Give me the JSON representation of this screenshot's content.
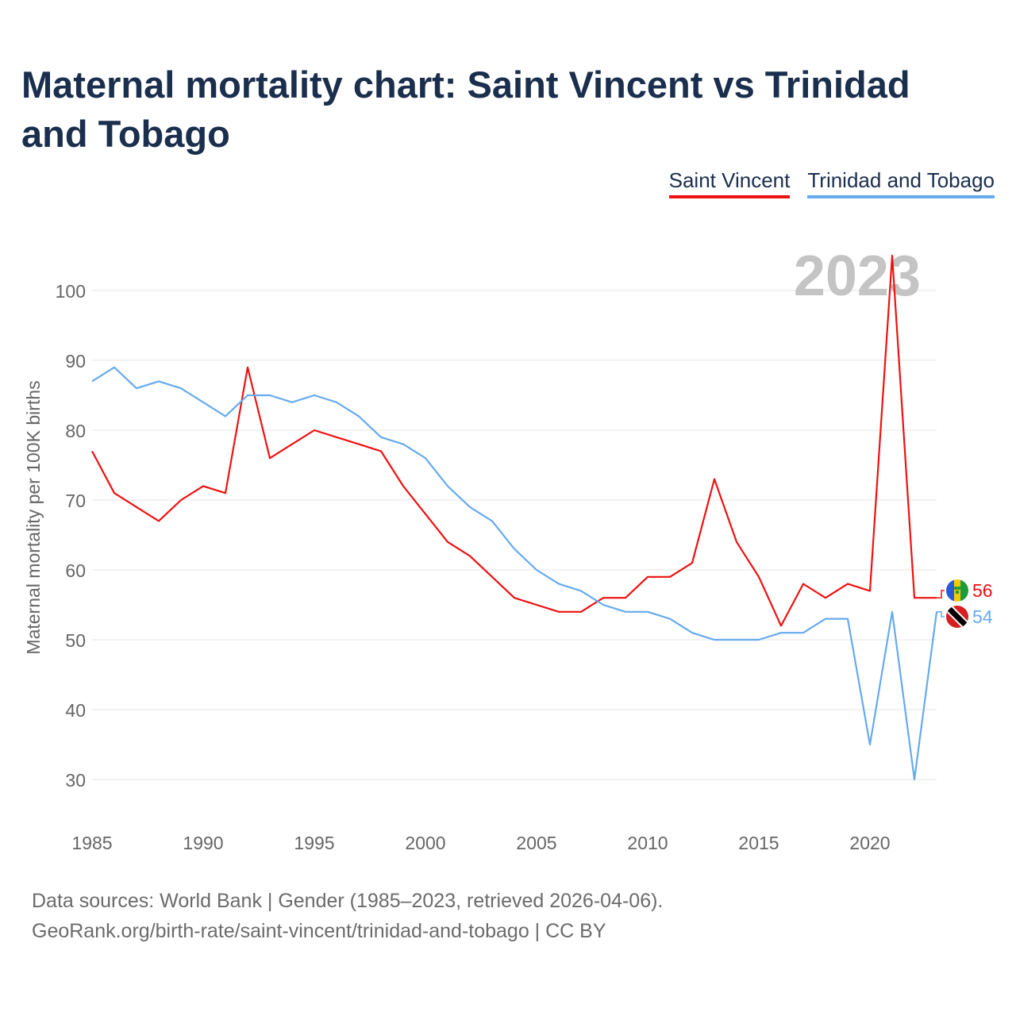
{
  "title": "Maternal mortality chart: Saint Vincent vs Trinidad and Tobago",
  "legend": [
    "Saint Vincent",
    "Trinidad and Tobago"
  ],
  "year_label": "2023",
  "end_labels": {
    "saint_vincent": "56",
    "trinidad": "54"
  },
  "source": {
    "line1": "Data sources: World Bank | Gender (1985–2023, retrieved 2026-04-06).",
    "line2": "GeoRank.org/birth-rate/saint-vincent/trinidad-and-tobago | CC BY"
  },
  "colors": {
    "saint_vincent": "#ee1111",
    "trinidad": "#66aaee",
    "title": "#1a2e4d",
    "axis_text": "#666666",
    "grid": "#e6e6e6",
    "year": "#c4c4c4"
  },
  "chart_data": {
    "type": "line",
    "title": "Maternal mortality chart: Saint Vincent vs Trinidad and Tobago",
    "xlabel": "",
    "ylabel": "Maternal mortality per 100K births",
    "xlim": [
      1985,
      2023
    ],
    "ylim": [
      25,
      110
    ],
    "x_ticks": [
      1985,
      1990,
      1995,
      2000,
      2005,
      2010,
      2015,
      2020
    ],
    "y_ticks": [
      30,
      40,
      50,
      60,
      70,
      80,
      90,
      100
    ],
    "x": [
      1985,
      1986,
      1987,
      1988,
      1989,
      1990,
      1991,
      1992,
      1993,
      1994,
      1995,
      1996,
      1997,
      1998,
      1999,
      2000,
      2001,
      2002,
      2003,
      2004,
      2005,
      2006,
      2007,
      2008,
      2009,
      2010,
      2011,
      2012,
      2013,
      2014,
      2015,
      2016,
      2017,
      2018,
      2019,
      2020,
      2021,
      2022,
      2023
    ],
    "series": [
      {
        "name": "Saint Vincent",
        "color": "#ee1111",
        "values": [
          77,
          71,
          69,
          67,
          70,
          72,
          71,
          89,
          76,
          78,
          80,
          79,
          78,
          77,
          72,
          68,
          64,
          62,
          59,
          56,
          55,
          54,
          54,
          56,
          56,
          59,
          59,
          61,
          73,
          64,
          59,
          52,
          58,
          56,
          58,
          57,
          105,
          56,
          56
        ]
      },
      {
        "name": "Trinidad and Tobago",
        "color": "#66aaee",
        "values": [
          87,
          89,
          86,
          87,
          86,
          84,
          82,
          85,
          85,
          84,
          85,
          84,
          82,
          79,
          78,
          76,
          72,
          69,
          67,
          63,
          60,
          58,
          57,
          55,
          54,
          54,
          53,
          51,
          50,
          50,
          50,
          51,
          51,
          53,
          53,
          35,
          54,
          30,
          54
        ]
      }
    ]
  }
}
